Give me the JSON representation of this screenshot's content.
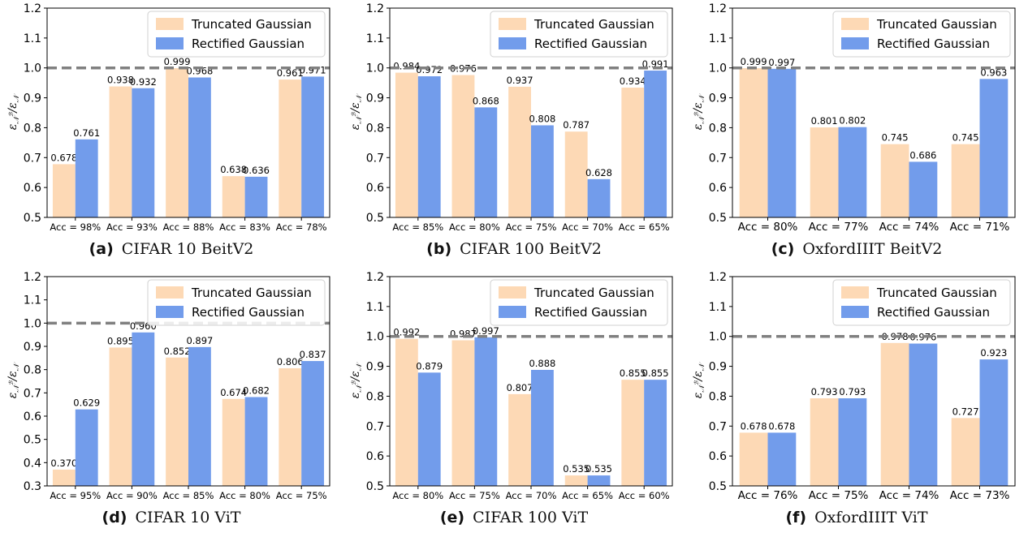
{
  "legend_labels": [
    "Truncated Gaussian",
    "Rectified Gaussian"
  ],
  "colors": {
    "truncated": "#fdd9b5",
    "rectified": "#729ceb",
    "reference_line": "#808080"
  },
  "chart_data": [
    {
      "type": "bar",
      "letter": "(a)",
      "caption": "CIFAR 10 BeitV2",
      "categories": [
        "Acc = 98%",
        "Acc = 93%",
        "Acc = 88%",
        "Acc = 83%",
        "Acc = 78%"
      ],
      "series": [
        {
          "name": "Truncated Gaussian",
          "values": [
            0.678,
            0.938,
            0.999,
            0.638,
            0.961
          ]
        },
        {
          "name": "Rectified Gaussian",
          "values": [
            0.761,
            0.932,
            0.968,
            0.636,
            0.971
          ]
        }
      ],
      "ylim": [
        0.5,
        1.2
      ],
      "yticks": [
        0.5,
        0.6,
        0.7,
        0.8,
        0.9,
        1.0,
        1.1,
        1.2
      ],
      "reference_line": 1.0,
      "legend": "top-right",
      "grid": false
    },
    {
      "type": "bar",
      "letter": "(b)",
      "caption": "CIFAR 100 BeitV2",
      "categories": [
        "Acc = 85%",
        "Acc = 80%",
        "Acc = 75%",
        "Acc = 70%",
        "Acc = 65%"
      ],
      "series": [
        {
          "name": "Truncated Gaussian",
          "values": [
            0.984,
            0.976,
            0.937,
            0.787,
            0.934
          ]
        },
        {
          "name": "Rectified Gaussian",
          "values": [
            0.972,
            0.868,
            0.808,
            0.628,
            0.991
          ]
        }
      ],
      "ylim": [
        0.5,
        1.2
      ],
      "yticks": [
        0.5,
        0.6,
        0.7,
        0.8,
        0.9,
        1.0,
        1.1,
        1.2
      ],
      "reference_line": 1.0,
      "legend": "top-right",
      "grid": false
    },
    {
      "type": "bar",
      "letter": "(c)",
      "caption": "OxfordIIIT BeitV2",
      "categories": [
        "Acc = 80%",
        "Acc = 77%",
        "Acc = 74%",
        "Acc = 71%"
      ],
      "series": [
        {
          "name": "Truncated Gaussian",
          "values": [
            0.999,
            0.801,
            0.745,
            0.745
          ]
        },
        {
          "name": "Rectified Gaussian",
          "values": [
            0.997,
            0.802,
            0.686,
            0.963
          ]
        }
      ],
      "ylim": [
        0.5,
        1.2
      ],
      "yticks": [
        0.5,
        0.6,
        0.7,
        0.8,
        0.9,
        1.0,
        1.1,
        1.2
      ],
      "reference_line": 1.0,
      "legend": "top-right",
      "grid": false
    },
    {
      "type": "bar",
      "letter": "(d)",
      "caption": "CIFAR 10 ViT",
      "categories": [
        "Acc = 95%",
        "Acc = 90%",
        "Acc = 85%",
        "Acc = 80%",
        "Acc = 75%"
      ],
      "series": [
        {
          "name": "Truncated Gaussian",
          "values": [
            0.37,
            0.895,
            0.852,
            0.674,
            0.806
          ]
        },
        {
          "name": "Rectified Gaussian",
          "values": [
            0.629,
            0.96,
            0.897,
            0.682,
            0.837
          ]
        }
      ],
      "ylim": [
        0.3,
        1.2
      ],
      "yticks": [
        0.3,
        0.4,
        0.5,
        0.6,
        0.7,
        0.8,
        0.9,
        1.0,
        1.1,
        1.2
      ],
      "reference_line": 1.0,
      "legend": "top-right",
      "grid": false
    },
    {
      "type": "bar",
      "letter": "(e)",
      "caption": "CIFAR 100 ViT",
      "categories": [
        "Acc = 80%",
        "Acc = 75%",
        "Acc = 70%",
        "Acc = 65%",
        "Acc = 60%"
      ],
      "series": [
        {
          "name": "Truncated Gaussian",
          "values": [
            0.992,
            0.987,
            0.807,
            0.535,
            0.855
          ]
        },
        {
          "name": "Rectified Gaussian",
          "values": [
            0.879,
            0.997,
            0.888,
            0.535,
            0.855
          ]
        }
      ],
      "ylim": [
        0.5,
        1.2
      ],
      "yticks": [
        0.5,
        0.6,
        0.7,
        0.8,
        0.9,
        1.0,
        1.1,
        1.2
      ],
      "reference_line": 1.0,
      "legend": "top-right",
      "grid": false
    },
    {
      "type": "bar",
      "letter": "(f)",
      "caption": "OxfordIIIT ViT",
      "categories": [
        "Acc = 76%",
        "Acc = 75%",
        "Acc = 74%",
        "Acc = 73%"
      ],
      "series": [
        {
          "name": "Truncated Gaussian",
          "values": [
            0.678,
            0.793,
            0.978,
            0.727
          ]
        },
        {
          "name": "Rectified Gaussian",
          "values": [
            0.678,
            0.793,
            0.976,
            0.923
          ]
        }
      ],
      "ylim": [
        0.5,
        1.2
      ],
      "yticks": [
        0.5,
        0.6,
        0.7,
        0.8,
        0.9,
        1.0,
        1.1,
        1.2
      ],
      "reference_line": 1.0,
      "legend": "top-right",
      "grid": false
    }
  ]
}
